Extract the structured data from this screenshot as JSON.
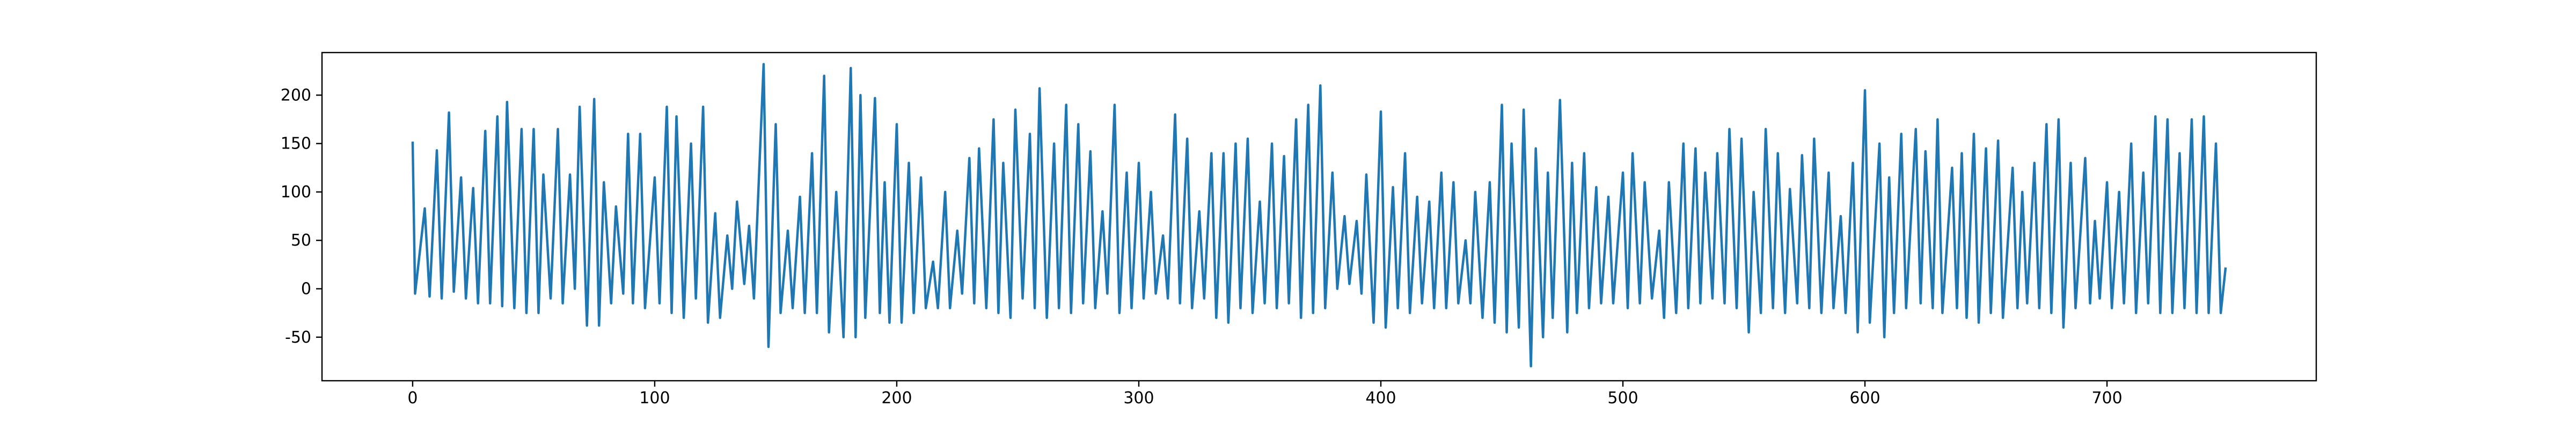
{
  "chart_data": {
    "type": "line",
    "color": "#1f77b4",
    "x": [
      0,
      1,
      5,
      7,
      10,
      12,
      15,
      17,
      20,
      22,
      25,
      27,
      30,
      32,
      35,
      37,
      39,
      42,
      45,
      47,
      50,
      52,
      54,
      57,
      60,
      62,
      65,
      67,
      69,
      72,
      75,
      77,
      79,
      82,
      84,
      87,
      89,
      91,
      94,
      96,
      100,
      102,
      105,
      107,
      109,
      112,
      115,
      117,
      120,
      122,
      125,
      127,
      130,
      132,
      134,
      137,
      139,
      141,
      145,
      147,
      150,
      152,
      155,
      157,
      160,
      162,
      165,
      167,
      170,
      172,
      175,
      178,
      181,
      183,
      185,
      187,
      191,
      193,
      195,
      197,
      200,
      202,
      205,
      207,
      210,
      212,
      215,
      217,
      220,
      222,
      225,
      227,
      230,
      232,
      234,
      237,
      240,
      242,
      244,
      247,
      249,
      252,
      255,
      257,
      259,
      262,
      265,
      267,
      270,
      272,
      275,
      277,
      280,
      282,
      285,
      287,
      290,
      292,
      295,
      297,
      300,
      302,
      305,
      307,
      310,
      312,
      315,
      317,
      320,
      322,
      325,
      327,
      330,
      332,
      335,
      337,
      340,
      342,
      345,
      347,
      350,
      352,
      355,
      357,
      360,
      362,
      365,
      367,
      370,
      372,
      375,
      377,
      380,
      382,
      385,
      387,
      390,
      392,
      394,
      397,
      400,
      402,
      405,
      407,
      410,
      412,
      415,
      417,
      420,
      422,
      425,
      427,
      430,
      432,
      435,
      437,
      439,
      442,
      445,
      447,
      450,
      452,
      454,
      457,
      459,
      462,
      464,
      467,
      469,
      471,
      474,
      477,
      479,
      481,
      484,
      486,
      489,
      491,
      494,
      496,
      500,
      502,
      504,
      507,
      509,
      512,
      515,
      517,
      519,
      522,
      525,
      527,
      530,
      532,
      534,
      537,
      539,
      542,
      544,
      547,
      549,
      552,
      554,
      557,
      559,
      562,
      564,
      567,
      569,
      572,
      574,
      577,
      579,
      582,
      585,
      587,
      590,
      592,
      595,
      597,
      600,
      602,
      606,
      608,
      610,
      612,
      615,
      617,
      621,
      623,
      625,
      628,
      630,
      632,
      636,
      638,
      640,
      642,
      645,
      647,
      650,
      652,
      655,
      657,
      661,
      663,
      665,
      667,
      670,
      672,
      675,
      677,
      680,
      682,
      685,
      687,
      691,
      693,
      695,
      697,
      700,
      702,
      705,
      707,
      710,
      712,
      715,
      717,
      720,
      722,
      725,
      727,
      730,
      732,
      735,
      737,
      740,
      742,
      745,
      747,
      749
    ],
    "values": [
      152,
      -5,
      83,
      -8,
      143,
      -10,
      182,
      -3,
      115,
      -10,
      104,
      -15,
      163,
      -15,
      178,
      -18,
      193,
      -20,
      165,
      -25,
      165,
      -25,
      118,
      -10,
      165,
      -15,
      118,
      0,
      188,
      -38,
      196,
      -38,
      110,
      -15,
      85,
      -5,
      160,
      -15,
      160,
      -20,
      115,
      -15,
      188,
      -25,
      178,
      -30,
      150,
      -10,
      188,
      -35,
      78,
      -30,
      55,
      0,
      90,
      5,
      65,
      -10,
      232,
      -60,
      170,
      -25,
      60,
      -20,
      95,
      -25,
      140,
      -25,
      220,
      -45,
      100,
      -50,
      228,
      -50,
      200,
      -30,
      197,
      -25,
      110,
      -35,
      170,
      -35,
      130,
      -25,
      115,
      -20,
      28,
      -20,
      100,
      -20,
      60,
      -5,
      135,
      -15,
      145,
      -20,
      175,
      -25,
      130,
      -30,
      185,
      -10,
      160,
      -20,
      207,
      -30,
      150,
      -20,
      190,
      -25,
      170,
      -15,
      142,
      -20,
      80,
      -5,
      190,
      -25,
      120,
      -20,
      130,
      -10,
      100,
      -5,
      55,
      -10,
      180,
      -15,
      155,
      -20,
      80,
      -10,
      140,
      -30,
      140,
      -35,
      150,
      -20,
      155,
      -25,
      90,
      -15,
      150,
      -20,
      137,
      -15,
      175,
      -30,
      190,
      -25,
      210,
      -20,
      120,
      0,
      75,
      5,
      70,
      -5,
      118,
      -35,
      183,
      -40,
      105,
      -20,
      140,
      -25,
      95,
      -15,
      90,
      -20,
      120,
      -20,
      110,
      -15,
      50,
      -15,
      100,
      -30,
      110,
      -35,
      190,
      -45,
      150,
      -40,
      185,
      -80,
      145,
      -50,
      120,
      -30,
      195,
      -45,
      130,
      -25,
      140,
      -20,
      105,
      -15,
      95,
      -15,
      120,
      -20,
      140,
      -15,
      110,
      -10,
      60,
      -30,
      110,
      -25,
      150,
      -20,
      145,
      -15,
      120,
      -10,
      140,
      -15,
      165,
      -20,
      155,
      -45,
      100,
      -25,
      165,
      -20,
      140,
      -25,
      103,
      -15,
      138,
      -20,
      155,
      -25,
      120,
      -20,
      75,
      -25,
      130,
      -45,
      205,
      -35,
      150,
      -50,
      115,
      -25,
      160,
      -20,
      165,
      -15,
      142,
      -20,
      175,
      -25,
      125,
      -20,
      140,
      -30,
      160,
      -35,
      145,
      -25,
      153,
      -30,
      125,
      -20,
      100,
      -15,
      130,
      -20,
      170,
      -25,
      175,
      -40,
      130,
      -20,
      135,
      -15,
      70,
      -10,
      110,
      -20,
      100,
      -15,
      150,
      -25,
      120,
      -15,
      178,
      -25,
      175,
      -25,
      140,
      -20,
      175,
      -25,
      178,
      -25,
      150,
      -25,
      22
    ],
    "xlim": [
      -37.45,
      786.45
    ],
    "xticks": [
      0,
      100,
      200,
      300,
      400,
      500,
      600,
      700
    ],
    "ylim": [
      -95,
      244
    ],
    "yticks": [
      -50,
      0,
      50,
      100,
      150,
      200
    ]
  }
}
